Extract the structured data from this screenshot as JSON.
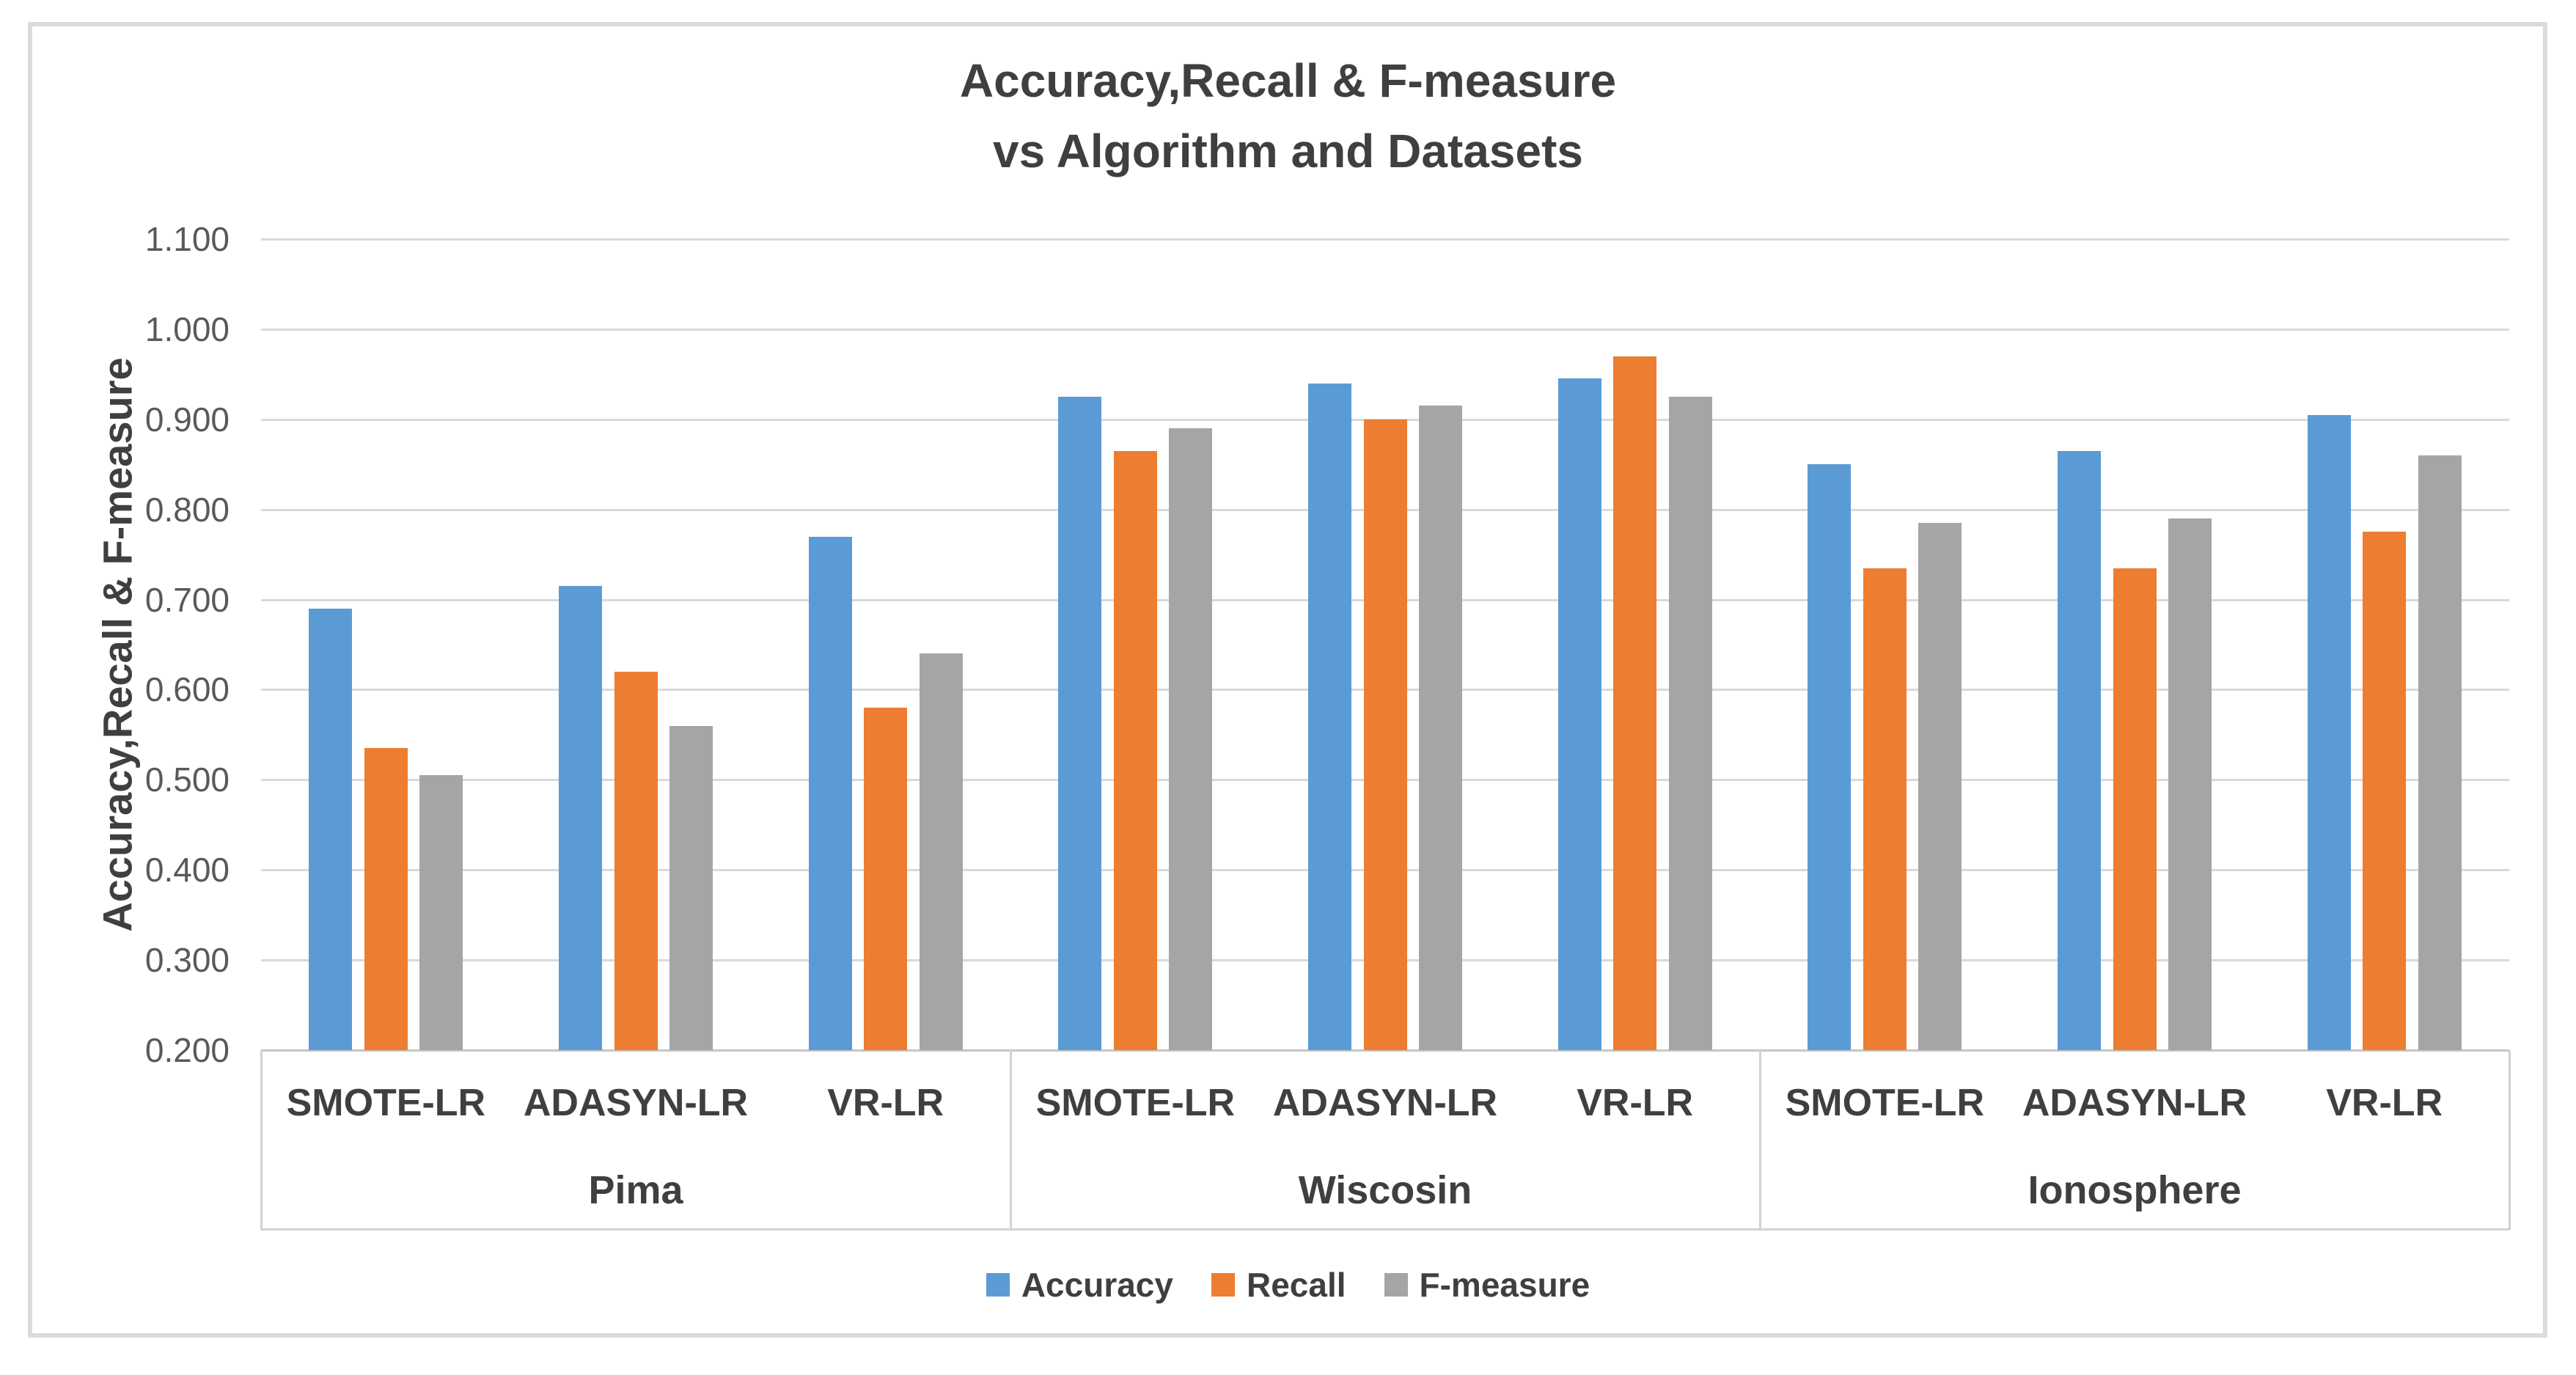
{
  "chart_data": {
    "type": "bar",
    "title": "Accuracy,Recall & F-measure vs Algorithm and Datasets",
    "title_lines": [
      "Accuracy,Recall & F-measure",
      "vs Algorithm and Datasets"
    ],
    "ylabel": "Accuracy,Recall & F-measure",
    "xlabel": "",
    "ylim": [
      0.2,
      1.1
    ],
    "ytick_interval": 0.1,
    "ytick_labels": [
      "1.100",
      "1.000",
      "0.900",
      "0.800",
      "0.700",
      "0.600",
      "0.500",
      "0.400",
      "0.300",
      "0.200"
    ],
    "grid": true,
    "legend_position": "bottom-center",
    "datasets": [
      "Pima",
      "Wiscosin",
      "Ionosphere"
    ],
    "algorithms": [
      "SMOTE-LR",
      "ADASYN-LR",
      "VR-LR"
    ],
    "categories": [
      "SMOTE-LR",
      "ADASYN-LR",
      "VR-LR",
      "SMOTE-LR",
      "ADASYN-LR",
      "VR-LR",
      "SMOTE-LR",
      "ADASYN-LR",
      "VR-LR"
    ],
    "series": [
      {
        "name": "Accuracy",
        "color": "#5B9BD5",
        "values": [
          0.69,
          0.715,
          0.77,
          0.925,
          0.94,
          0.945,
          0.85,
          0.865,
          0.905
        ]
      },
      {
        "name": "Recall",
        "color": "#ED7D31",
        "values": [
          0.535,
          0.62,
          0.58,
          0.865,
          0.9,
          0.97,
          0.735,
          0.735,
          0.775
        ]
      },
      {
        "name": "F-measure",
        "color": "#A5A5A5",
        "values": [
          0.505,
          0.56,
          0.64,
          0.89,
          0.915,
          0.925,
          0.785,
          0.79,
          0.86
        ]
      }
    ],
    "colors": {
      "accuracy": "#5B9BD5",
      "recall": "#ED7D31",
      "f_measure": "#A5A5A5",
      "gridline": "#D9D9D9",
      "text_dark": "#3F3F3F",
      "text_tick": "#595959",
      "frame_border": "#DBDBDB"
    }
  }
}
